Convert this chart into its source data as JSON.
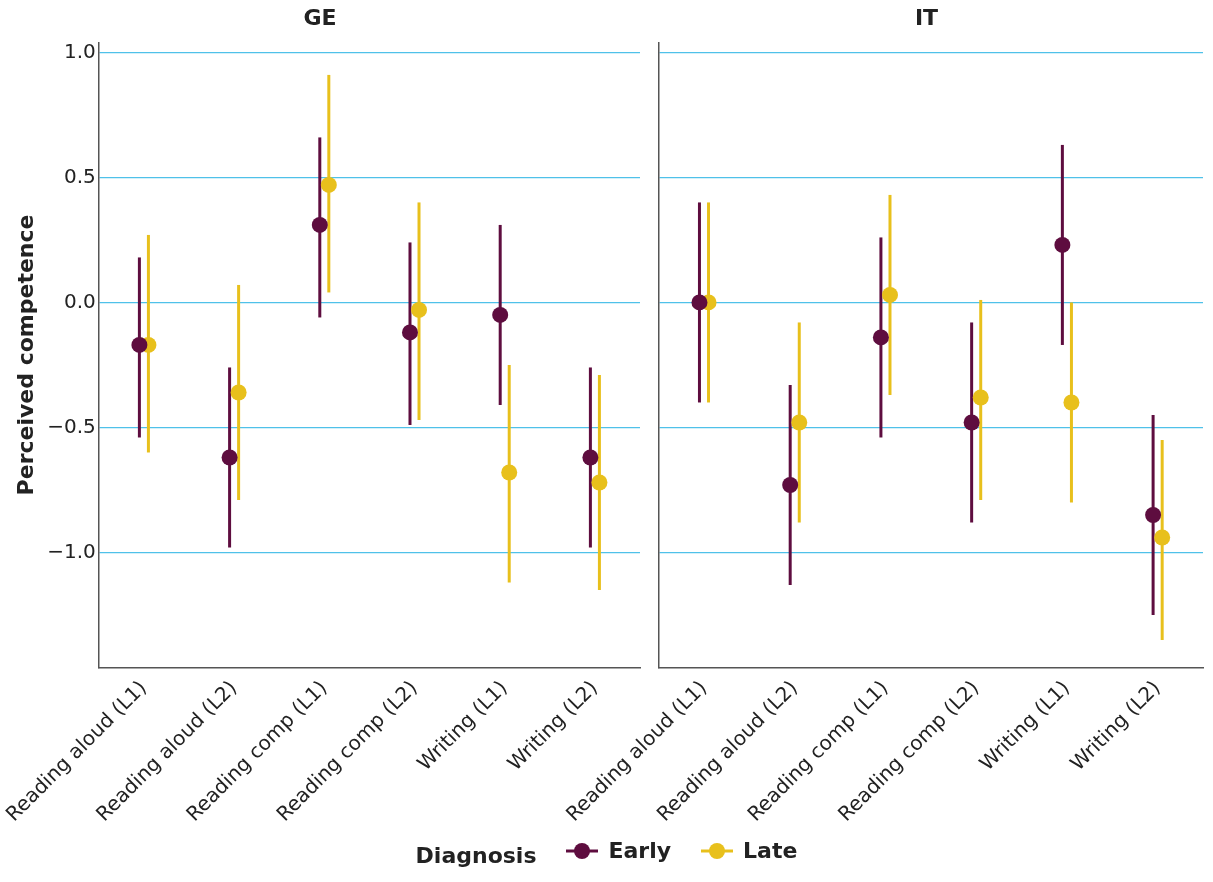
{
  "chart_data": [
    {
      "type": "scatter",
      "title": "GE",
      "ylabel": "Perceived competence",
      "categories": [
        "Reading aloud (L1)",
        "Reading aloud (L2)",
        "Reading comp (L1)",
        "Reading comp (L2)",
        "Writing (L1)",
        "Writing (L2)"
      ],
      "ylim": [
        -1.46,
        1.04
      ],
      "yticks": [
        {
          "value": 1.0,
          "label": "1.0"
        },
        0.5,
        {
          "value": 0.0,
          "label": "0.0"
        },
        {
          "value": -0.5,
          "label": "−0.5"
        },
        {
          "value": -1.0,
          "label": "−1.0"
        }
      ],
      "grid": "y",
      "marker": "circle",
      "legend": "bottom",
      "legend_title": "Diagnosis",
      "series": [
        {
          "name": "Early",
          "color": "#5e0d3f",
          "values": [
            -0.17,
            -0.62,
            0.31,
            -0.12,
            -0.05,
            -0.62
          ],
          "errors": [
            [
              -0.54,
              0.18
            ],
            [
              -0.98,
              -0.26
            ],
            [
              -0.06,
              0.66
            ],
            [
              -0.49,
              0.24
            ],
            [
              -0.41,
              0.31
            ],
            [
              -0.98,
              -0.26
            ]
          ]
        },
        {
          "name": "Late",
          "color": "#e8c01c",
          "values": [
            -0.17,
            -0.36,
            0.47,
            -0.03,
            -0.68,
            -0.72
          ],
          "errors": [
            [
              -0.6,
              0.27
            ],
            [
              -0.79,
              0.07
            ],
            [
              0.04,
              0.91
            ],
            [
              -0.47,
              0.4
            ],
            [
              -1.12,
              -0.25
            ],
            [
              -1.15,
              -0.29
            ]
          ]
        }
      ]
    },
    {
      "type": "scatter",
      "title": "IT",
      "categories": [
        "Reading aloud (L1)",
        "Reading aloud (L2)",
        "Reading comp (L1)",
        "Reading comp (L2)",
        "Writing (L1)",
        "Writing (L2)"
      ],
      "ylim": [
        -1.46,
        1.04
      ],
      "yticks": [
        1,
        0.5,
        0,
        -0.5,
        -1
      ],
      "tick_labels": "x",
      "grid": "y",
      "marker": "circle",
      "series": [
        {
          "color": "#5e0d3f",
          "values": [
            0.0,
            -0.73,
            -0.14,
            -0.48,
            0.23,
            -0.85
          ],
          "errors": [
            [
              -0.4,
              0.4
            ],
            [
              -1.13,
              -0.33
            ],
            [
              -0.54,
              0.26
            ],
            [
              -0.88,
              -0.08
            ],
            [
              -0.17,
              0.63
            ],
            [
              -1.25,
              -0.45
            ]
          ]
        },
        {
          "color": "#e8c01c",
          "values": [
            0.0,
            -0.48,
            0.03,
            -0.38,
            -0.4,
            -0.94
          ],
          "errors": [
            [
              -0.4,
              0.4
            ],
            [
              -0.88,
              -0.08
            ],
            [
              -0.37,
              0.43
            ],
            [
              -0.79,
              0.01
            ],
            [
              -0.8,
              0.0
            ],
            [
              -1.35,
              -0.55
            ]
          ]
        }
      ]
    }
  ]
}
